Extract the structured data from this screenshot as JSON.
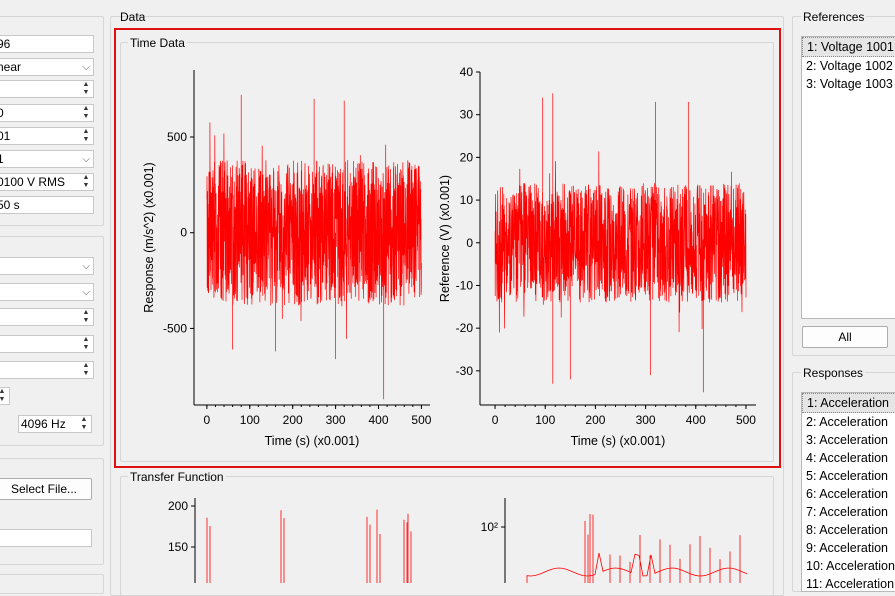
{
  "left_panel": {
    "fields": [
      {
        "type": "field",
        "value": "96"
      },
      {
        "type": "combo",
        "value": "near"
      },
      {
        "type": "spin",
        "value": ""
      },
      {
        "type": "spin",
        "value": "0"
      },
      {
        "type": "spin",
        "value": "01"
      },
      {
        "type": "combo",
        "value": "1"
      },
      {
        "type": "spin",
        "value": "0100 V RMS"
      },
      {
        "type": "field",
        "value": "50 s"
      }
    ],
    "fields2": [
      {
        "type": "combo",
        "value": ""
      },
      {
        "type": "combo",
        "value": ""
      },
      {
        "type": "spin",
        "value": ""
      },
      {
        "type": "spin",
        "value": ""
      },
      {
        "type": "spin",
        "value": ""
      },
      {
        "type": "spin",
        "value": ""
      }
    ],
    "freq_value": "4096 Hz",
    "select_file_label": "Select File..."
  },
  "data_group": {
    "title": "Data"
  },
  "time_data": {
    "title": "Time Data"
  },
  "transfer_function": {
    "title": "Transfer Function"
  },
  "references": {
    "title": "References",
    "items": [
      "1: Voltage 1001",
      "2: Voltage 1002",
      "3: Voltage 1003"
    ],
    "all_label": "All"
  },
  "responses": {
    "title": "Responses",
    "items": [
      "1: Acceleration",
      "2: Acceleration",
      "3: Acceleration",
      "4: Acceleration",
      "5: Acceleration",
      "6: Acceleration",
      "7: Acceleration",
      "8: Acceleration",
      "9: Acceleration",
      "10: Acceleration",
      "11: Acceleration"
    ]
  },
  "colors": {
    "signal": "#ff0000",
    "highlight_border": "#e01010"
  },
  "chart_data": [
    {
      "type": "line",
      "title": "",
      "xlabel": "Time (s) (x0.001)",
      "ylabel": "Response (m/s^2) (x0.001)",
      "xlim": [
        -30,
        520
      ],
      "ylim": [
        -900,
        850
      ],
      "xticks": [
        "0",
        "100",
        "200",
        "300",
        "400",
        "500"
      ],
      "yticks": [
        "-500",
        "0",
        "500"
      ],
      "signal": "noise, amplitude approx ±400 with spikes to +720 / -870 over 0–500"
    },
    {
      "type": "line",
      "title": "",
      "xlabel": "Time (s) (x0.001)",
      "ylabel": "Reference (V) (x0.001)",
      "xlim": [
        -30,
        520
      ],
      "ylim": [
        -38,
        40
      ],
      "xticks": [
        "0",
        "100",
        "200",
        "300",
        "400",
        "500"
      ],
      "yticks": [
        "-30",
        "-20",
        "-10",
        "0",
        "10",
        "20",
        "30",
        "40"
      ],
      "signal": "noise, amplitude approx ±15 with spikes to +36 / -35 over 0–500"
    },
    {
      "type": "line",
      "title": "",
      "xlabel": "",
      "ylabel": "",
      "ylim": [
        100,
        200
      ],
      "yticks": [
        "200",
        "150"
      ]
    },
    {
      "type": "line",
      "title": "",
      "xlabel": "",
      "ylabel": "",
      "yscale": "log",
      "yticks": [
        "10²"
      ]
    }
  ]
}
